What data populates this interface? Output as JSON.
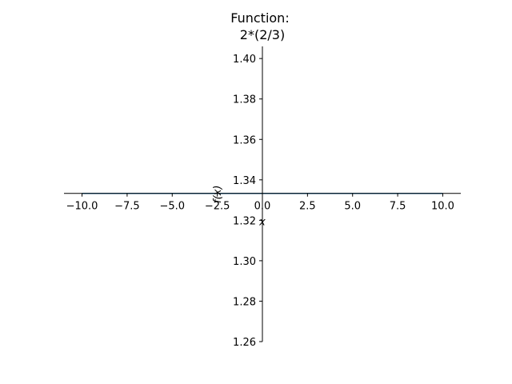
{
  "chart_data": {
    "type": "line",
    "title_lines": [
      "Function:",
      "2*(2/3)"
    ],
    "xlabel": "x",
    "ylabel": "f(x)",
    "xlim": [
      -11,
      11
    ],
    "ylim": [
      1.26,
      1.406
    ],
    "grid": false,
    "x_ticks": [
      -10,
      -7.5,
      -5,
      -2.5,
      0,
      2.5,
      5,
      7.5,
      10
    ],
    "x_tick_labels": [
      "−10.0",
      "−7.5",
      "−5.0",
      "−2.5",
      "0.0",
      "2.5",
      "5.0",
      "7.5",
      "10.0"
    ],
    "y_ticks": [
      1.26,
      1.28,
      1.3,
      1.32,
      1.34,
      1.36,
      1.38,
      1.4
    ],
    "y_tick_labels": [
      "1.26",
      "1.28",
      "1.30",
      "1.32",
      "1.34",
      "1.36",
      "1.38",
      "1.40"
    ],
    "series": [
      {
        "x": [
          -10,
          10
        ],
        "y": [
          1.3333,
          1.3333
        ],
        "color": "#1f77b4"
      }
    ],
    "axis_color": "#000000"
  }
}
